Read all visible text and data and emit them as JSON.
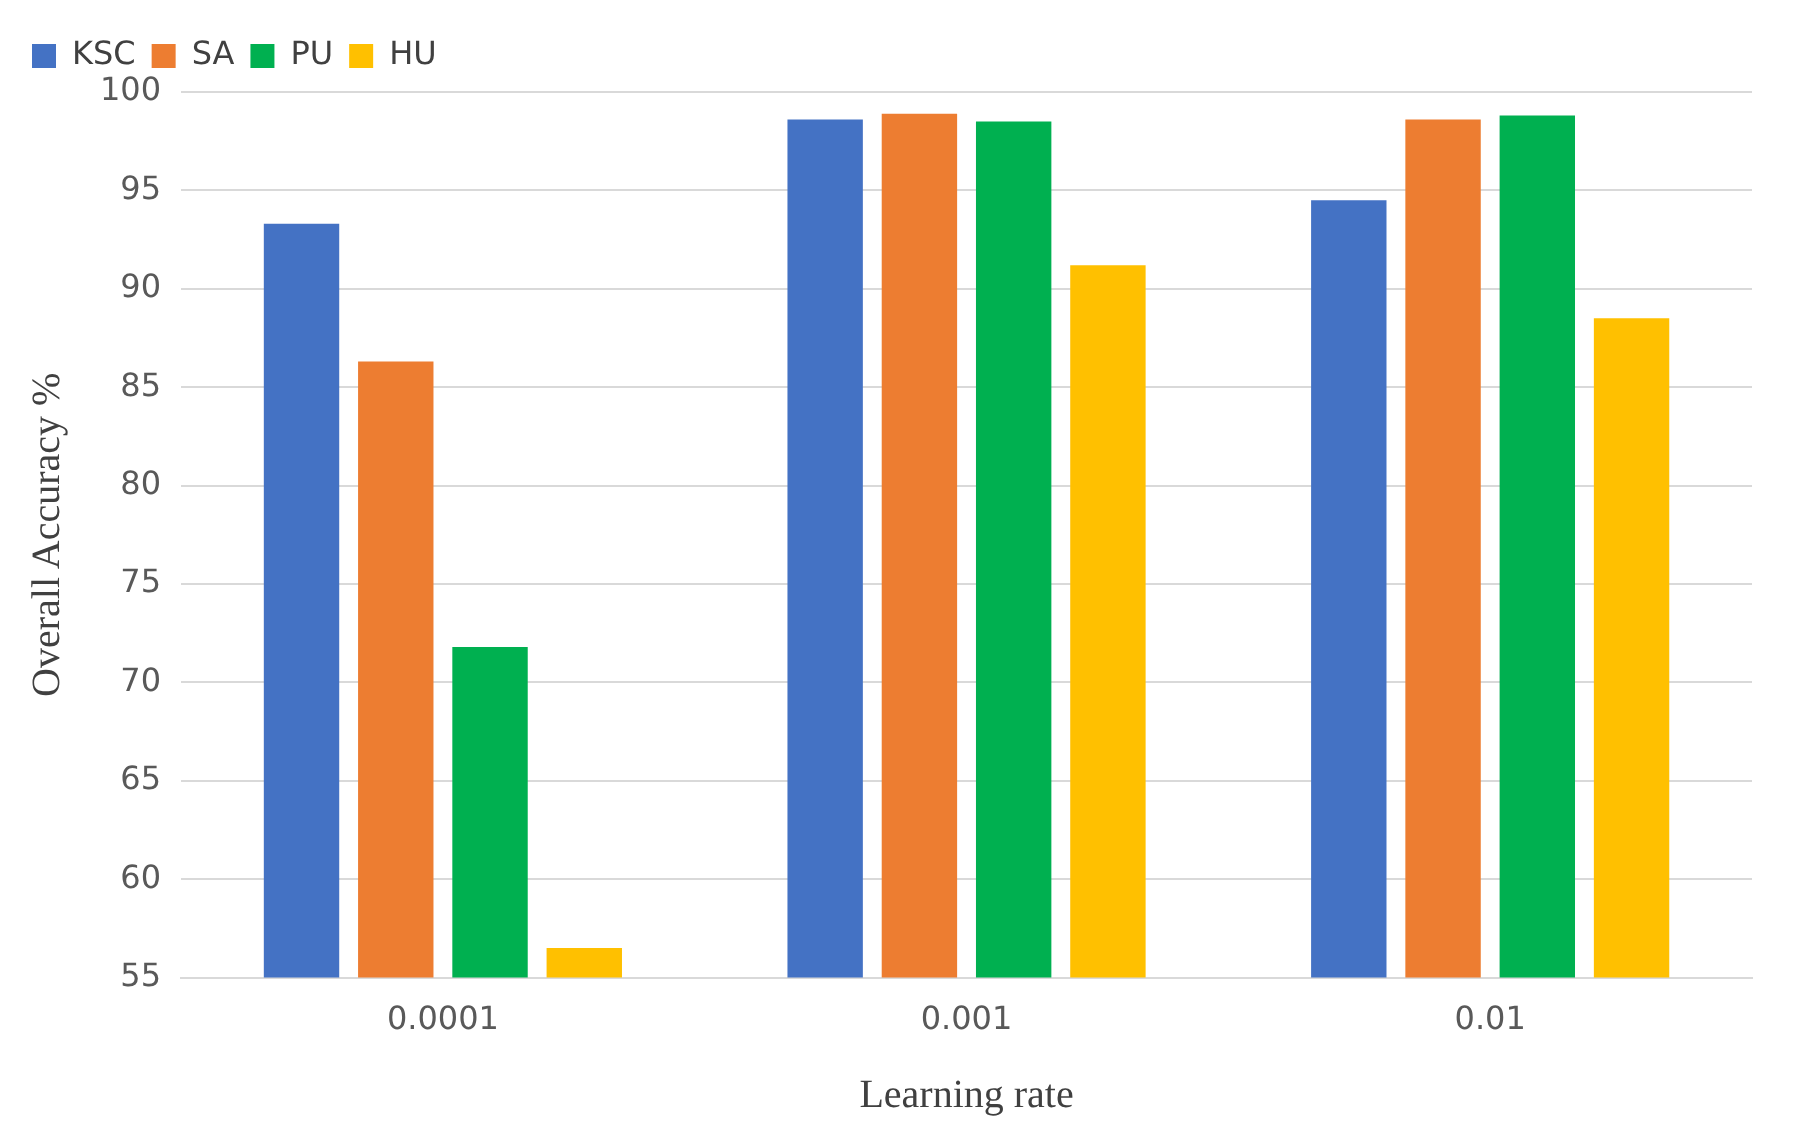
{
  "chart_data": {
    "type": "bar",
    "xlabel": "Learning rate",
    "ylabel": "Overall Accuracy %",
    "categories": [
      "0.0001",
      "0.001",
      "0.01"
    ],
    "series": [
      {
        "name": "KSC",
        "color": "#4472c4",
        "values": [
          93.3,
          98.6,
          94.5
        ]
      },
      {
        "name": "SA",
        "color": "#ed7d31",
        "values": [
          86.3,
          98.9,
          98.6
        ]
      },
      {
        "name": "PU",
        "color": "#00b050",
        "values": [
          71.8,
          98.5,
          98.8
        ]
      },
      {
        "name": "HU",
        "color": "#ffc000",
        "values": [
          56.5,
          91.2,
          88.5
        ]
      }
    ],
    "ylim": [
      55,
      100
    ],
    "yticks": [
      55,
      60,
      65,
      70,
      75,
      80,
      85,
      90,
      95,
      100
    ],
    "grid": "y",
    "legend": "top left"
  }
}
